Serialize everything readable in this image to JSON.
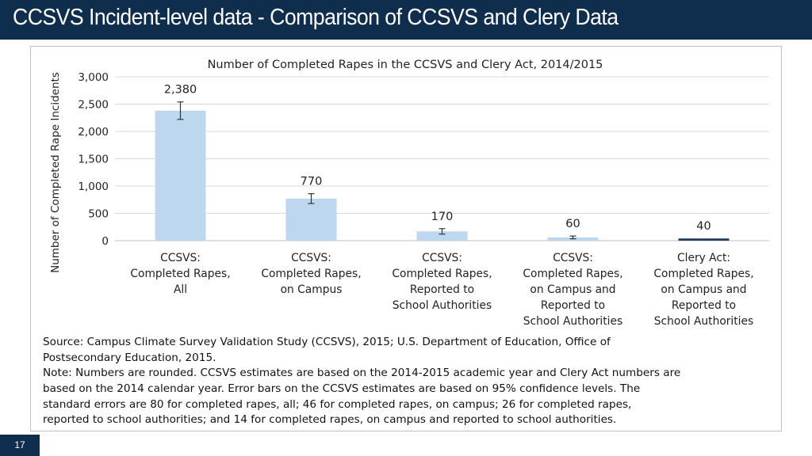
{
  "slide": {
    "title": "CCSVS Incident-level data - Comparison of CCSVS and Clery Data",
    "number": "17"
  },
  "colors": {
    "bar_light": "#bdd7ee",
    "bar_dark": "#1f3d5e",
    "header_bg": "#0f2d4c"
  },
  "chart_data": {
    "type": "bar",
    "title": "Number of Completed Rapes in the CCSVS and Clery Act, 2014/2015",
    "xlabel": "",
    "ylabel": "Number of Completed Rape Incidents",
    "ylim": [
      0,
      3000
    ],
    "yticks": [
      0,
      500,
      1000,
      1500,
      2000,
      2500,
      3000
    ],
    "ytick_labels": [
      "0",
      "500",
      "1,000",
      "1,500",
      "2,000",
      "2,500",
      "3,000"
    ],
    "grid": true,
    "categories": [
      [
        "CCSVS:",
        "Completed Rapes,",
        "All"
      ],
      [
        "CCSVS:",
        "Completed Rapes,",
        "on Campus"
      ],
      [
        "CCSVS:",
        "Completed Rapes,",
        "Reported to",
        "School Authorities"
      ],
      [
        "CCSVS:",
        "Completed Rapes,",
        "on Campus and",
        "Reported to",
        "School Authorities"
      ],
      [
        "Clery Act:",
        "Completed Rapes,",
        "on Campus and",
        "Reported to",
        "School Authorities"
      ]
    ],
    "values": [
      2380,
      770,
      170,
      60,
      40
    ],
    "data_labels": [
      "2,380",
      "770",
      "170",
      "60",
      "40"
    ],
    "error_bars": [
      [
        2220,
        2540
      ],
      [
        680,
        860
      ],
      [
        120,
        220
      ],
      [
        35,
        85
      ],
      null
    ],
    "bar_colors": [
      "#bdd7ee",
      "#bdd7ee",
      "#bdd7ee",
      "#bdd7ee",
      "#1f3d5e"
    ]
  },
  "notes": {
    "source_lines": [
      "Source:  Campus Climate Survey Validation Study (CCSVS), 2015; U.S. Department of Education, Office of",
      "  Postsecondary Education, 2015."
    ],
    "note_lines": [
      "Note:  Numbers are rounded. CCSVS estimates are based on the 2014-2015 academic year and Clery Act numbers are",
      "  based on the 2014 calendar year. Error bars on the CCSVS estimates are based on 95% confidence levels. The",
      "  standard errors are 80 for completed rapes, all; 46 for completed rapes, on campus; 26 for completed rapes,",
      "  reported to school authorities; and 14 for completed rapes, on campus and reported to school authorities."
    ]
  }
}
